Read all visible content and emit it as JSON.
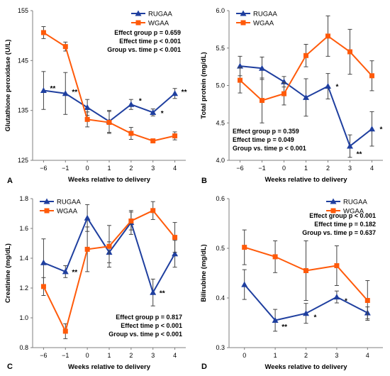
{
  "colors": {
    "RUGAA": "#1f3f9f",
    "WGAA": "#ff5a0a"
  },
  "chart_data": [
    {
      "panel": "A",
      "type": "line",
      "ylabel": "Glutathione peroxidase (U/L)",
      "xlabel": "Weeks relative to delivery",
      "ylim": [
        125,
        155
      ],
      "yticks": [
        "125",
        "135",
        "145",
        "155"
      ],
      "categories": [
        "−6",
        "−1",
        "0",
        "1",
        "2",
        "3",
        "4"
      ],
      "legend": "top-right",
      "series": [
        {
          "name": "RUGAA",
          "values": [
            139,
            138.4,
            135.6,
            132.8,
            136.2,
            134.6,
            138.4
          ],
          "errors": [
            3.8,
            4.2,
            1.6,
            2.2,
            1,
            0.7,
            1
          ],
          "marker": "triangle"
        },
        {
          "name": "WGAA",
          "values": [
            150.6,
            147.8,
            133.2,
            132.6,
            130.4,
            128.9,
            129.9
          ],
          "errors": [
            1.2,
            0.9,
            1.5,
            2.2,
            1.2,
            0,
            0.8
          ],
          "marker": "square"
        }
      ],
      "annotations": [
        "Effect group p = 0.659",
        "Effect time p < 0.001",
        "Group vs. time p < 0.001"
      ],
      "significance": [
        {
          "label": "**",
          "x": 0,
          "y": 139.5
        },
        {
          "label": "**",
          "x": 1,
          "y": 138.8
        },
        {
          "label": "*",
          "x": 4,
          "y": 137.0
        },
        {
          "label": "*",
          "x": 5,
          "y": 134.5
        },
        {
          "label": "**",
          "x": 6,
          "y": 138.8
        }
      ]
    },
    {
      "panel": "B",
      "type": "line",
      "ylabel": "Total protein (mg/dL)",
      "xlabel": "Weeks relative to delivery",
      "ylim": [
        4,
        6
      ],
      "yticks": [
        "4.0",
        "4.5",
        "5.0",
        "5.5",
        "6.0"
      ],
      "categories": [
        "−6",
        "−1",
        "0",
        "1",
        "2",
        "3",
        "4"
      ],
      "legend": "top-left",
      "series": [
        {
          "name": "RUGAA",
          "values": [
            5.26,
            5.23,
            5.05,
            4.84,
            4.99,
            4.19,
            4.42
          ],
          "errors": [
            0.13,
            0.15,
            0.07,
            0.25,
            0.17,
            0.15,
            0.23
          ],
          "marker": "triangle"
        },
        {
          "name": "WGAA",
          "values": [
            5.07,
            4.8,
            4.89,
            5.4,
            5.66,
            5.45,
            5.13
          ],
          "errors": [
            0.17,
            0.3,
            0.15,
            0.15,
            0.27,
            0.3,
            0.2
          ],
          "marker": "square"
        }
      ],
      "annotations": [
        "Effect group p = 0.359",
        "Effect time p = 0.049",
        "Group vs. time p < 0.001"
      ],
      "significance": [
        {
          "label": "*",
          "x": 4,
          "y": 4.99
        },
        {
          "label": "**",
          "x": 5,
          "y": 4.09
        },
        {
          "label": "*",
          "x": 6,
          "y": 4.42
        }
      ]
    },
    {
      "panel": "C",
      "type": "line",
      "ylabel": "Creatinine (mg/dL)",
      "xlabel": "Weeks relative to delivery",
      "ylim": [
        0.8,
        1.8
      ],
      "yticks": [
        "0.8",
        "1.0",
        "1.2",
        "1.4",
        "1.6",
        "1.8"
      ],
      "categories": [
        "−6",
        "−1",
        "0",
        "1",
        "2",
        "3",
        "4"
      ],
      "legend": "top-left",
      "series": [
        {
          "name": "RUGAA",
          "values": [
            1.37,
            1.31,
            1.67,
            1.44,
            1.64,
            1.17,
            1.43
          ],
          "errors": [
            0.16,
            0.04,
            0.09,
            0.07,
            0.08,
            0.09,
            0.09
          ],
          "marker": "triangle"
        },
        {
          "name": "WGAA",
          "values": [
            1.21,
            0.91,
            1.46,
            1.48,
            1.65,
            1.72,
            1.54
          ],
          "errors": [
            0.06,
            0.05,
            0.15,
            0.14,
            0.06,
            0.06,
            0.1
          ],
          "marker": "square"
        }
      ],
      "annotations": [
        "Effect group p = 0.817",
        "Effect time p < 0.001",
        "Group vs. time p < 0.001"
      ],
      "significance": [
        {
          "label": "**",
          "x": 1,
          "y": 1.31
        },
        {
          "label": "**",
          "x": 5,
          "y": 1.17
        }
      ]
    },
    {
      "panel": "D",
      "type": "line",
      "ylabel": "Bilirubine (mg/dL)",
      "xlabel": "Weeks relative to delivery",
      "ylim": [
        0.3,
        0.6
      ],
      "yticks": [
        "0.3",
        "0.4",
        "0.5",
        "0.6"
      ],
      "categories": [
        "0",
        "1",
        "2",
        "3",
        "4"
      ],
      "legend": "top-right",
      "series": [
        {
          "name": "RUGAA",
          "values": [
            0.427,
            0.355,
            0.369,
            0.402,
            0.37
          ],
          "errors": [
            0.03,
            0.022,
            0.02,
            0.012,
            0.012
          ],
          "marker": "triangle"
        },
        {
          "name": "WGAA",
          "values": [
            0.502,
            0.483,
            0.455,
            0.465,
            0.395
          ],
          "errors": [
            0.035,
            0.032,
            0.06,
            0.04,
            0.04
          ],
          "marker": "square"
        }
      ],
      "annotations": [
        "Effect group p < 0.001",
        "Effect time p = 0.182",
        "Group vs. time p = 0.637"
      ],
      "significance": [
        {
          "label": "**",
          "x": 1,
          "y": 0.343
        },
        {
          "label": "*",
          "x": 2,
          "y": 0.362
        },
        {
          "label": "*",
          "x": 3,
          "y": 0.395
        }
      ]
    }
  ]
}
